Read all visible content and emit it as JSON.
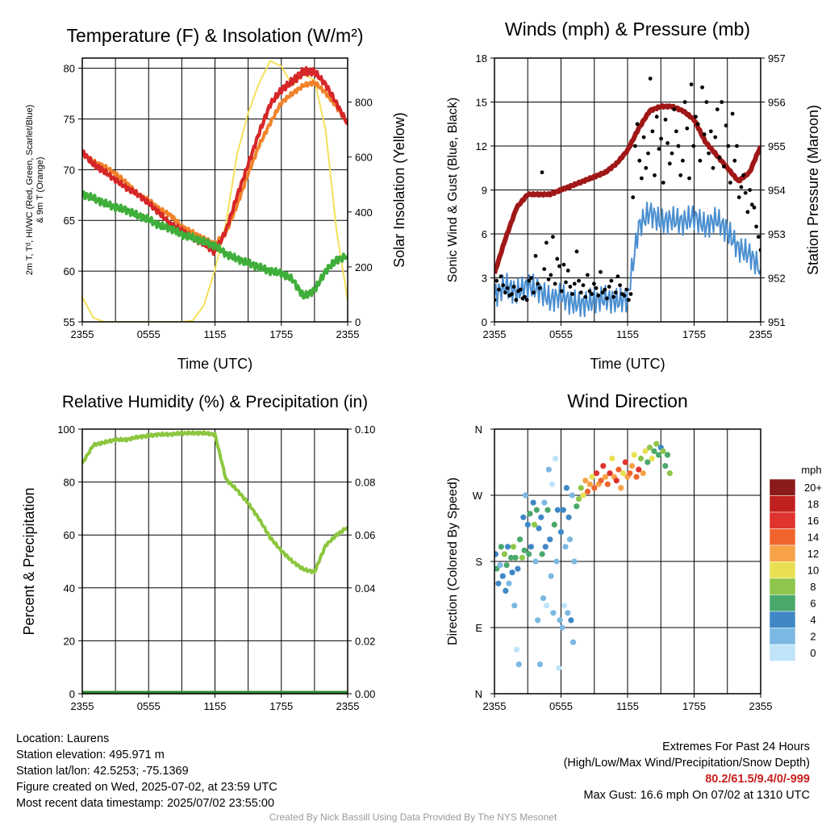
{
  "chart_data": [
    {
      "type": "line",
      "title": "Temperature (F) & Insolation (W/m²)",
      "xlabel": "Time (UTC)",
      "x_ticks": [
        "2355",
        "0555",
        "1155",
        "1755",
        "2355"
      ],
      "ylabel_left": [
        "2m T, Tᵈ, HI/WC (Red, Green, Scarlet/Blue)",
        "& 9m T (Orange)"
      ],
      "ylabel_right": "Solar Insolation (Yellow)",
      "ylim_left": [
        55,
        81
      ],
      "yticks_left": [
        55,
        60,
        65,
        70,
        75,
        80
      ],
      "ylim_right": [
        0,
        960
      ],
      "yticks_right": [
        0,
        200,
        400,
        600,
        800
      ],
      "hours": [
        0,
        1,
        2,
        3,
        4,
        5,
        6,
        7,
        8,
        9,
        10,
        11,
        12,
        13,
        14,
        15,
        16,
        17,
        18,
        19,
        20,
        21,
        22,
        23,
        24
      ],
      "series": [
        {
          "color": "#d62728",
          "values": [
            71.8,
            70.5,
            69.8,
            69.0,
            68.2,
            67.6,
            66.7,
            65.7,
            64.6,
            64.0,
            63.2,
            62.7,
            61.8,
            64.0,
            67.4,
            70.5,
            73.6,
            76.4,
            77.8,
            78.6,
            79.5,
            79.6,
            78.4,
            76.5,
            74.5
          ]
        },
        {
          "color": "#f0822a",
          "values": [
            71.6,
            70.8,
            70.3,
            69.6,
            68.7,
            67.6,
            67.0,
            66.1,
            65.5,
            64.4,
            63.8,
            63.2,
            62.7,
            63.8,
            66.5,
            69.6,
            72.4,
            74.6,
            76.6,
            77.5,
            78.3,
            78.6,
            77.6,
            76.2,
            74.6
          ]
        },
        {
          "color": "#d62728",
          "values": [
            71.8,
            70.7,
            69.9,
            69.0,
            68.3,
            67.5,
            66.8,
            65.7,
            64.7,
            64.1,
            63.3,
            62.8,
            61.9,
            64.1,
            67.5,
            70.6,
            73.8,
            76.6,
            78.0,
            78.9,
            79.9,
            79.8,
            78.5,
            76.6,
            74.6
          ]
        },
        {
          "color": "#3fae3a",
          "values": [
            67.6,
            67.2,
            66.7,
            66.3,
            66.0,
            65.5,
            65.1,
            64.5,
            64.2,
            63.6,
            63.3,
            62.9,
            62.5,
            61.7,
            61.2,
            60.8,
            60.4,
            60.0,
            59.8,
            59.2,
            57.5,
            58.1,
            60.0,
            61.1,
            61.5
          ]
        },
        {
          "color": "#f5e05a",
          "values": [
            90,
            15,
            0,
            0,
            0,
            0,
            0,
            0,
            0,
            0,
            5,
            60,
            190,
            360,
            610,
            760,
            870,
            950,
            930,
            860,
            900,
            880,
            700,
            330,
            80
          ]
        }
      ]
    },
    {
      "type": "line",
      "title": "Winds (mph) & Pressure (mb)",
      "xlabel": "Time (UTC)",
      "x_ticks": [
        "2355",
        "0555",
        "1155",
        "1755",
        "2355"
      ],
      "ylabel_left": "Sonic Wind & Gust (Blue, Black)",
      "ylabel_right": "Station Pressure (Maroon)",
      "ylim_left": [
        0,
        18
      ],
      "yticks_left": [
        0,
        3,
        6,
        9,
        12,
        15,
        18
      ],
      "ylim_right": [
        951,
        957
      ],
      "yticks_right": [
        951,
        952,
        953,
        954,
        955,
        956,
        957
      ],
      "hours": [
        0,
        1,
        2,
        3,
        4,
        5,
        6,
        7,
        8,
        9,
        10,
        11,
        12,
        13,
        14,
        15,
        16,
        17,
        18,
        19,
        20,
        21,
        22,
        23,
        24
      ],
      "series": [
        {
          "color": "#4a8fd0",
          "values": [
            1.8,
            2.5,
            2.0,
            2.5,
            2.2,
            1.5,
            1.8,
            1.3,
            1.2,
            1.5,
            1.6,
            1.4,
            1.6,
            6.5,
            7.5,
            6.8,
            7.0,
            6.8,
            7.2,
            6.5,
            7.0,
            6.2,
            5.0,
            4.6,
            3.6
          ]
        },
        {
          "color": "#a01717",
          "values": [
            952.1,
            952.9,
            953.6,
            953.9,
            953.9,
            953.9,
            954.0,
            954.1,
            954.2,
            954.3,
            954.4,
            954.6,
            954.9,
            955.4,
            955.8,
            955.9,
            955.9,
            955.8,
            955.6,
            955.1,
            954.8,
            954.5,
            954.2,
            954.4,
            955.0
          ]
        }
      ],
      "gusts": [
        1.5,
        2.8,
        2.2,
        3.1,
        2.5,
        2.0,
        2.3,
        1.8,
        1.9,
        2.4,
        1.5,
        2.1,
        2.2,
        1.6,
        1.7,
        1.5,
        2.8,
        3.0,
        2.0,
        4.5,
        2.6,
        2.3,
        10.2,
        3.6,
        5.4,
        2.9,
        3.2,
        5.8,
        2.6,
        4.3,
        3.8,
        2.1,
        3.9,
        2.7,
        3.5,
        2.4,
        1.9,
        2.6,
        4.8,
        2.8,
        2.0,
        2.5,
        1.7,
        3.2,
        2.1,
        1.9,
        2.6,
        2.3,
        1.8,
        3.4,
        2.0,
        2.2,
        1.6,
        2.4,
        2.8,
        1.7,
        2.0,
        3.1,
        2.5,
        1.9,
        1.8,
        2.2,
        1.5,
        1.9,
        8.5,
        12.0,
        13.5,
        11.0,
        9.8,
        12.6,
        10.5,
        11.5,
        16.6,
        13.0,
        10.0,
        14.0,
        11.8,
        12.5,
        9.5,
        13.8,
        12.2,
        10.8,
        11.5,
        14.5,
        13.0,
        12.0,
        10.0,
        11.0,
        15.0,
        13.2,
        9.8,
        16.2,
        12.0,
        14.0,
        13.5,
        11.0,
        16.0,
        12.8,
        15.0,
        11.5,
        13.0,
        10.5,
        12.6,
        14.5,
        11.2,
        15.0,
        10.6,
        13.4,
        12.0,
        9.5,
        14.2,
        11.0,
        12.0,
        8.5,
        9.2,
        10.0,
        8.8,
        7.5,
        9.0,
        8.0,
        7.8,
        6.5,
        5.8,
        4.9
      ]
    },
    {
      "type": "line",
      "title": "Relative Humidity (%) & Precipitation (in)",
      "ylabel_left": "Percent & Precipitation",
      "x_ticks": [
        "2355",
        "0555",
        "1155",
        "1755",
        "2355"
      ],
      "ylim_left": [
        0,
        100
      ],
      "yticks_left": [
        0,
        20,
        40,
        60,
        80,
        100
      ],
      "ylim_right": [
        0,
        0.1
      ],
      "yticks_right": [
        "0.00",
        "0.02",
        "0.04",
        "0.06",
        "0.08",
        "0.10"
      ],
      "hours": [
        0,
        1,
        2,
        3,
        4,
        5,
        6,
        7,
        8,
        9,
        10,
        11,
        12,
        13,
        14,
        15,
        16,
        17,
        18,
        19,
        20,
        21,
        22,
        23,
        24
      ],
      "series": [
        {
          "color": "#8cc63f",
          "values": [
            87,
            94,
            95,
            96,
            96,
            97,
            97.5,
            98,
            98,
            98.5,
            98.5,
            98.5,
            98,
            81,
            77,
            72,
            66,
            59,
            54,
            50,
            47,
            46,
            56,
            60,
            63
          ]
        },
        {
          "color": "#2e8b2e",
          "values": [
            0,
            0,
            0,
            0,
            0,
            0,
            0,
            0,
            0,
            0,
            0,
            0,
            0,
            0,
            0,
            0,
            0,
            0,
            0,
            0,
            0,
            0,
            0,
            0,
            0
          ]
        }
      ]
    },
    {
      "type": "scatter",
      "title": "Wind Direction",
      "ylabel": "Direction (Colored By Speed)",
      "x_ticks": [
        "2355",
        "0555",
        "1155",
        "1755",
        "2355"
      ],
      "y_ticks": [
        "N",
        "E",
        "S",
        "W",
        "N"
      ],
      "ylim": [
        0,
        360
      ],
      "colorbar_title": "mph",
      "colorbar_labels": [
        "20+",
        "18",
        "16",
        "14",
        "12",
        "10",
        "8",
        "6",
        "4",
        "2",
        "0"
      ],
      "colorbar_colors": [
        "#8b1a1a",
        "#c0211f",
        "#e0322e",
        "#f0642e",
        "#f7a247",
        "#e8e052",
        "#8dc64a",
        "#4aa86c",
        "#3f88c5",
        "#7bb8e2",
        "#bfe4f7"
      ],
      "points": [
        [
          0.1,
          190,
          2
        ],
        [
          0.2,
          170,
          3
        ],
        [
          0.35,
          150,
          2
        ],
        [
          0.5,
          175,
          1
        ],
        [
          0.6,
          200,
          3
        ],
        [
          0.75,
          160,
          2
        ],
        [
          0.9,
          190,
          4
        ],
        [
          1.0,
          140,
          2
        ],
        [
          1.1,
          175,
          3
        ],
        [
          1.2,
          200,
          2
        ],
        [
          1.3,
          150,
          1
        ],
        [
          1.5,
          185,
          3
        ],
        [
          1.6,
          165,
          2
        ],
        [
          1.7,
          200,
          4
        ],
        [
          1.8,
          120,
          1
        ],
        [
          1.9,
          185,
          3
        ],
        [
          2.0,
          60,
          0
        ],
        [
          2.1,
          170,
          2
        ],
        [
          2.2,
          40,
          1
        ],
        [
          2.3,
          210,
          3
        ],
        [
          2.5,
          185,
          4
        ],
        [
          2.6,
          240,
          2
        ],
        [
          2.7,
          195,
          3
        ],
        [
          2.8,
          270,
          1
        ],
        [
          3.0,
          230,
          2
        ],
        [
          3.1,
          190,
          3
        ],
        [
          3.2,
          245,
          3
        ],
        [
          3.3,
          200,
          2
        ],
        [
          3.5,
          260,
          2
        ],
        [
          3.6,
          230,
          4
        ],
        [
          3.7,
          180,
          1
        ],
        [
          3.8,
          250,
          3
        ],
        [
          3.9,
          100,
          1
        ],
        [
          4.0,
          225,
          2
        ],
        [
          4.1,
          40,
          1
        ],
        [
          4.2,
          240,
          2
        ],
        [
          4.3,
          190,
          3
        ],
        [
          4.4,
          130,
          1
        ],
        [
          4.5,
          260,
          1
        ],
        [
          4.6,
          200,
          2
        ],
        [
          4.7,
          120,
          0
        ],
        [
          4.8,
          250,
          3
        ],
        [
          4.9,
          305,
          1
        ],
        [
          5.0,
          210,
          2
        ],
        [
          5.1,
          160,
          1
        ],
        [
          5.2,
          285,
          0
        ],
        [
          5.3,
          110,
          1
        ],
        [
          5.4,
          230,
          3
        ],
        [
          5.5,
          320,
          0
        ],
        [
          5.6,
          180,
          1
        ],
        [
          5.7,
          250,
          2
        ],
        [
          5.8,
          35,
          0
        ],
        [
          5.9,
          100,
          1
        ],
        [
          6.0,
          220,
          2
        ],
        [
          6.1,
          90,
          1
        ],
        [
          6.2,
          250,
          2
        ],
        [
          6.3,
          120,
          0
        ],
        [
          6.4,
          200,
          1
        ],
        [
          6.5,
          280,
          2
        ],
        [
          6.6,
          110,
          1
        ],
        [
          6.7,
          240,
          2
        ],
        [
          6.8,
          210,
          1
        ],
        [
          6.9,
          100,
          2
        ],
        [
          7.0,
          270,
          1
        ],
        [
          7.1,
          70,
          1
        ],
        [
          7.2,
          180,
          1
        ],
        [
          7.4,
          255,
          3
        ],
        [
          7.6,
          265,
          4
        ],
        [
          7.8,
          280,
          4
        ],
        [
          8.0,
          270,
          5
        ],
        [
          8.2,
          290,
          6
        ],
        [
          8.4,
          275,
          7
        ],
        [
          8.6,
          285,
          6
        ],
        [
          8.8,
          295,
          5
        ],
        [
          9.0,
          280,
          7
        ],
        [
          9.2,
          300,
          8
        ],
        [
          9.4,
          285,
          6
        ],
        [
          9.6,
          290,
          7
        ],
        [
          9.8,
          310,
          8
        ],
        [
          10.0,
          295,
          6
        ],
        [
          10.2,
          285,
          7
        ],
        [
          10.4,
          300,
          8
        ],
        [
          10.6,
          320,
          5
        ],
        [
          10.8,
          295,
          6
        ],
        [
          11.0,
          290,
          8
        ],
        [
          11.2,
          305,
          7
        ],
        [
          11.4,
          280,
          6
        ],
        [
          11.6,
          300,
          5
        ],
        [
          11.8,
          315,
          8
        ],
        [
          12.0,
          295,
          6
        ],
        [
          12.2,
          300,
          7
        ],
        [
          12.4,
          310,
          6
        ],
        [
          12.6,
          325,
          5
        ],
        [
          12.8,
          295,
          7
        ],
        [
          13.0,
          305,
          8
        ],
        [
          13.2,
          320,
          4
        ],
        [
          13.4,
          300,
          6
        ],
        [
          13.6,
          330,
          5
        ],
        [
          13.8,
          315,
          3
        ],
        [
          14.0,
          335,
          4
        ],
        [
          14.2,
          320,
          5
        ],
        [
          14.4,
          330,
          3
        ],
        [
          14.6,
          340,
          4
        ],
        [
          14.8,
          325,
          3
        ],
        [
          15.0,
          335,
          2
        ],
        [
          15.2,
          330,
          4
        ],
        [
          15.4,
          310,
          3
        ],
        [
          15.6,
          325,
          3
        ],
        [
          15.8,
          300,
          4
        ]
      ]
    }
  ],
  "x_axis_title": "Time (UTC)",
  "info": {
    "location": "Location: Laurens",
    "elevation": "Station elevation: 495.971 m",
    "latlon": "Station lat/lon: 42.5253; -75.1369",
    "created": "Figure created on Wed, 2025-07-02, at 23:59 UTC",
    "recent": "Most recent data timestamp: 2025/07/02 23:55:00"
  },
  "extremes": {
    "title": "Extremes For Past 24 Hours",
    "subtitle": "(High/Low/Max Wind/Precipitation/Snow Depth)",
    "values": "80.2/61.5/9.4/0/-999",
    "max_gust": "Max Gust: 16.6 mph On 07/02 at 1310 UTC"
  },
  "credit": "Created By Nick Bassill Using Data Provided By The NYS Mesonet"
}
